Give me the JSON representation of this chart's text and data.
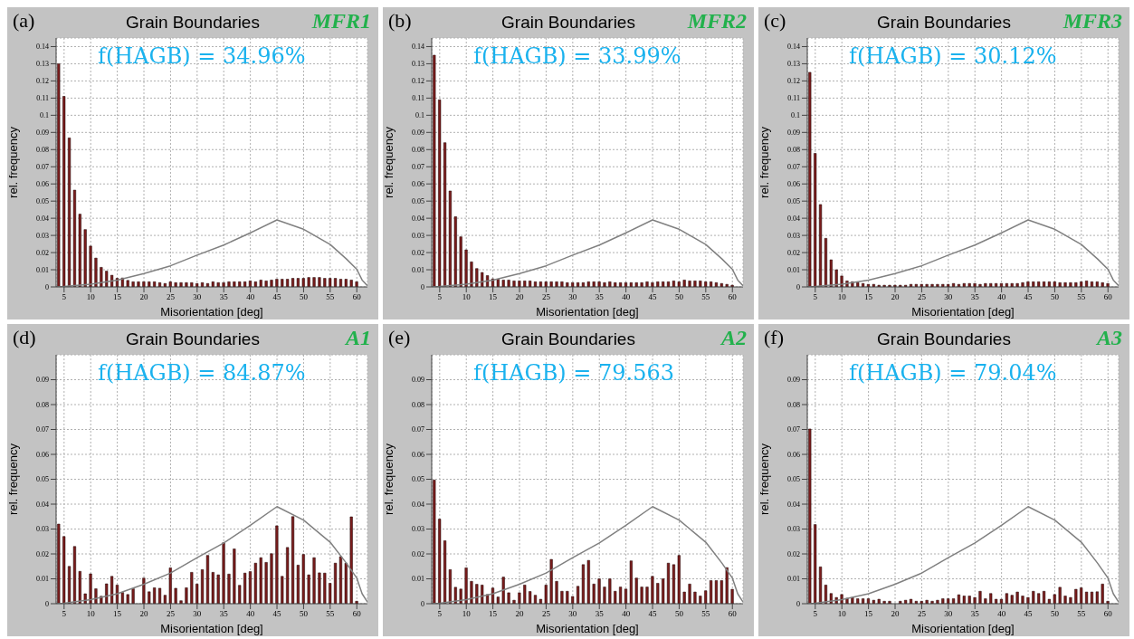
{
  "chart_data": [
    {
      "type": "bar",
      "title": "Grain Boundaries",
      "annotations": [
        "(a)",
        "MFR1",
        "f(HAGB) = 34.96%"
      ],
      "xlabel": "Misorientation [deg]",
      "ylabel": "rel. frequency",
      "xlim": [
        3.5,
        62
      ],
      "xticks": [
        5,
        10,
        15,
        20,
        25,
        30,
        35,
        40,
        45,
        50,
        55,
        60
      ],
      "ylim": [
        0,
        0.145
      ],
      "yticks": [
        0,
        0.01,
        0.02,
        0.03,
        0.04,
        0.05,
        0.06,
        0.07,
        0.08,
        0.09,
        0.1,
        0.11,
        0.12,
        0.13,
        0.14
      ],
      "grid": true,
      "series": [
        {
          "color": "#7a1c1c",
          "x": [
            4,
            5,
            6,
            7,
            8,
            9,
            10,
            11,
            12,
            13,
            14,
            15,
            16,
            17,
            18,
            19,
            20,
            21,
            22,
            23,
            24,
            25,
            26,
            27,
            28,
            29,
            30,
            31,
            32,
            33,
            34,
            35,
            36,
            37,
            38,
            39,
            40,
            41,
            42,
            43,
            44,
            45,
            46,
            47,
            48,
            49,
            50,
            51,
            52,
            53,
            54,
            55,
            56,
            57,
            58,
            59,
            60
          ],
          "values": [
            0.13,
            0.111,
            0.0868,
            0.0564,
            0.0424,
            0.0334,
            0.0238,
            0.0168,
            0.0114,
            0.0092,
            0.0068,
            0.005,
            0.0052,
            0.0038,
            0.003,
            0.003,
            0.003,
            0.003,
            0.003,
            0.0025,
            0.002,
            0.003,
            0.0025,
            0.0025,
            0.0025,
            0.0025,
            0.002,
            0.0025,
            0.002,
            0.003,
            0.0025,
            0.0025,
            0.003,
            0.003,
            0.003,
            0.003,
            0.0035,
            0.003,
            0.004,
            0.0035,
            0.004,
            0.0045,
            0.0045,
            0.0045,
            0.005,
            0.005,
            0.005,
            0.0055,
            0.0055,
            0.0055,
            0.005,
            0.005,
            0.005,
            0.0045,
            0.0045,
            0.004,
            0.003
          ]
        },
        {
          "type": "line",
          "color": "#808080",
          "x": [
            3.5,
            5,
            10,
            15,
            20,
            25,
            30,
            35,
            40,
            45,
            50,
            55,
            58,
            60,
            61,
            62
          ],
          "values": [
            0,
            0.0002,
            0.0016,
            0.004,
            0.0078,
            0.0123,
            0.0185,
            0.0244,
            0.0315,
            0.039,
            0.0336,
            0.0247,
            0.0164,
            0.0103,
            0.004,
            0.0007
          ]
        }
      ]
    },
    {
      "type": "bar",
      "title": "Grain Boundaries",
      "annotations": [
        "(b)",
        "MFR2",
        "f(HAGB) = 33.99%"
      ],
      "xlabel": "Misorientation [deg]",
      "ylabel": "rel. frequency",
      "xlim": [
        3.5,
        62
      ],
      "xticks": [
        5,
        10,
        15,
        20,
        25,
        30,
        35,
        40,
        45,
        50,
        55,
        60
      ],
      "ylim": [
        0,
        0.145
      ],
      "yticks": [
        0,
        0.01,
        0.02,
        0.03,
        0.04,
        0.05,
        0.06,
        0.07,
        0.08,
        0.09,
        0.1,
        0.11,
        0.12,
        0.13,
        0.14
      ],
      "grid": true,
      "series": [
        {
          "color": "#7a1c1c",
          "x": [
            4,
            5,
            6,
            7,
            8,
            9,
            10,
            11,
            12,
            13,
            14,
            15,
            16,
            17,
            18,
            19,
            20,
            21,
            22,
            23,
            24,
            25,
            26,
            27,
            28,
            29,
            30,
            31,
            32,
            33,
            34,
            35,
            36,
            37,
            38,
            39,
            40,
            41,
            42,
            43,
            44,
            45,
            46,
            47,
            48,
            49,
            50,
            51,
            52,
            53,
            54,
            55,
            56,
            57,
            58,
            59,
            60
          ],
          "values": [
            0.135,
            0.109,
            0.084,
            0.0559,
            0.0409,
            0.0292,
            0.0216,
            0.0146,
            0.0107,
            0.0084,
            0.0066,
            0.0047,
            0.0045,
            0.004,
            0.004,
            0.0035,
            0.0035,
            0.0035,
            0.0035,
            0.003,
            0.003,
            0.003,
            0.003,
            0.003,
            0.003,
            0.0025,
            0.0025,
            0.0025,
            0.0025,
            0.003,
            0.003,
            0.003,
            0.0025,
            0.003,
            0.0025,
            0.0025,
            0.0025,
            0.0025,
            0.0025,
            0.0025,
            0.003,
            0.0025,
            0.003,
            0.003,
            0.003,
            0.0035,
            0.003,
            0.004,
            0.0035,
            0.0035,
            0.0035,
            0.003,
            0.003,
            0.0025,
            0.002,
            0.0015,
            0.001
          ]
        },
        {
          "type": "line",
          "color": "#808080",
          "x": [
            3.5,
            5,
            10,
            15,
            20,
            25,
            30,
            35,
            40,
            45,
            50,
            55,
            58,
            60,
            61,
            62
          ],
          "values": [
            0,
            0.0002,
            0.0016,
            0.004,
            0.0078,
            0.0123,
            0.0185,
            0.0244,
            0.0315,
            0.039,
            0.0336,
            0.0247,
            0.0164,
            0.0103,
            0.004,
            0.0007
          ]
        }
      ]
    },
    {
      "type": "bar",
      "title": "Grain Boundaries",
      "annotations": [
        "(c)",
        "MFR3",
        "f(HAGB) = 30.12%"
      ],
      "xlabel": "Misorientation [deg]",
      "ylabel": "rel. frequency",
      "xlim": [
        3.5,
        62
      ],
      "xticks": [
        5,
        10,
        15,
        20,
        25,
        30,
        35,
        40,
        45,
        50,
        55,
        60
      ],
      "ylim": [
        0,
        0.145
      ],
      "yticks": [
        0,
        0.01,
        0.02,
        0.03,
        0.04,
        0.05,
        0.06,
        0.07,
        0.08,
        0.09,
        0.1,
        0.11,
        0.12,
        0.13,
        0.14
      ],
      "grid": true,
      "series": [
        {
          "color": "#7a1c1c",
          "x": [
            4,
            5,
            6,
            7,
            8,
            9,
            10,
            11,
            12,
            13,
            14,
            15,
            16,
            17,
            18,
            19,
            20,
            21,
            22,
            23,
            24,
            25,
            26,
            27,
            28,
            29,
            30,
            31,
            32,
            33,
            34,
            35,
            36,
            37,
            38,
            39,
            40,
            41,
            42,
            43,
            44,
            45,
            46,
            47,
            48,
            49,
            50,
            51,
            52,
            53,
            54,
            55,
            56,
            57,
            58,
            59,
            60
          ],
          "values": [
            0.125,
            0.0778,
            0.048,
            0.0283,
            0.0158,
            0.01,
            0.0064,
            0.0035,
            0.003,
            0.0025,
            0.002,
            0.0015,
            0.0015,
            0.001,
            0.001,
            0.001,
            0.001,
            0.001,
            0.001,
            0.0015,
            0.0015,
            0.0015,
            0.0015,
            0.0015,
            0.0015,
            0.0015,
            0.0015,
            0.002,
            0.0015,
            0.002,
            0.002,
            0.002,
            0.0015,
            0.002,
            0.002,
            0.002,
            0.002,
            0.002,
            0.002,
            0.002,
            0.0025,
            0.003,
            0.003,
            0.003,
            0.003,
            0.003,
            0.003,
            0.0025,
            0.0025,
            0.0025,
            0.0025,
            0.003,
            0.0035,
            0.003,
            0.003,
            0.0025,
            0.002
          ]
        },
        {
          "type": "line",
          "color": "#808080",
          "x": [
            3.5,
            5,
            10,
            15,
            20,
            25,
            30,
            35,
            40,
            45,
            50,
            55,
            58,
            60,
            61,
            62
          ],
          "values": [
            0,
            0.0002,
            0.0016,
            0.004,
            0.0078,
            0.0123,
            0.0185,
            0.0244,
            0.0315,
            0.039,
            0.0336,
            0.0247,
            0.0164,
            0.0103,
            0.004,
            0.0007
          ]
        }
      ]
    },
    {
      "type": "bar",
      "title": "Grain Boundaries",
      "annotations": [
        "(d)",
        "A1",
        "f(HAGB) = 84.87%"
      ],
      "xlabel": "Misorientation [deg]",
      "ylabel": "rel. frequency",
      "xlim": [
        3.5,
        62
      ],
      "xticks": [
        5,
        10,
        15,
        20,
        25,
        30,
        35,
        40,
        45,
        50,
        55,
        60
      ],
      "ylim": [
        0,
        0.1
      ],
      "yticks": [
        0,
        0.01,
        0.02,
        0.03,
        0.04,
        0.05,
        0.06,
        0.07,
        0.08,
        0.09
      ],
      "grid": true,
      "series": [
        {
          "color": "#7a1c1c",
          "x": [
            4,
            5,
            6,
            7,
            8,
            9,
            10,
            11,
            12,
            13,
            14,
            15,
            16,
            17,
            18,
            19,
            20,
            21,
            22,
            23,
            24,
            25,
            26,
            27,
            28,
            29,
            30,
            31,
            32,
            33,
            34,
            35,
            36,
            37,
            38,
            39,
            40,
            41,
            42,
            43,
            44,
            45,
            46,
            47,
            48,
            49,
            50,
            51,
            52,
            53,
            54,
            55,
            56,
            57,
            58,
            59,
            60
          ],
          "values": [
            0.032,
            0.027,
            0.015,
            0.023,
            0.013,
            0.004,
            0.012,
            0.006,
            0.003,
            0.008,
            0.011,
            0.0075,
            0.0045,
            0.0037,
            0.006,
            null,
            0.0103,
            0.0048,
            0.0064,
            0.0062,
            0.0034,
            0.0144,
            0.0062,
            0.0012,
            0.0064,
            0.0126,
            0.0079,
            0.0137,
            0.0194,
            0.0126,
            0.0116,
            0.0245,
            0.0119,
            0.022,
            0.0074,
            0.0123,
            0.0129,
            0.0163,
            0.0185,
            0.0166,
            0.0201,
            0.0313,
            0.011,
            0.0226,
            0.035,
            0.0155,
            0.0198,
            0.0116,
            0.0185,
            0.0124,
            0.0123,
            0.0082,
            0.0163,
            0.0189,
            0.0163,
            0.0349,
            0.001
          ]
        },
        {
          "type": "line",
          "color": "#808080",
          "x": [
            3.5,
            5,
            10,
            15,
            20,
            25,
            30,
            35,
            40,
            45,
            50,
            55,
            58,
            60,
            61,
            62
          ],
          "values": [
            0,
            0.0002,
            0.0016,
            0.004,
            0.0078,
            0.0123,
            0.0185,
            0.0244,
            0.0315,
            0.039,
            0.0336,
            0.0247,
            0.0164,
            0.0103,
            0.004,
            0.0007
          ]
        }
      ]
    },
    {
      "type": "bar",
      "title": "Grain Boundaries",
      "annotations": [
        "(e)",
        "A2",
        "f(HAGB) = 79.563"
      ],
      "xlabel": "Misorientation [deg]",
      "ylabel": "rel. frequency",
      "xlim": [
        3.5,
        62
      ],
      "xticks": [
        5,
        10,
        15,
        20,
        25,
        30,
        35,
        40,
        45,
        50,
        55,
        60
      ],
      "ylim": [
        0,
        0.1
      ],
      "yticks": [
        0,
        0.01,
        0.02,
        0.03,
        0.04,
        0.05,
        0.06,
        0.07,
        0.08,
        0.09
      ],
      "grid": true,
      "series": [
        {
          "color": "#7a1c1c",
          "x": [
            4,
            5,
            6,
            7,
            8,
            9,
            10,
            11,
            12,
            13,
            14,
            15,
            16,
            17,
            18,
            19,
            20,
            21,
            22,
            23,
            24,
            25,
            26,
            27,
            28,
            29,
            30,
            31,
            32,
            33,
            34,
            35,
            36,
            37,
            38,
            39,
            40,
            41,
            42,
            43,
            44,
            45,
            46,
            47,
            48,
            49,
            50,
            51,
            52,
            53,
            54,
            55,
            56,
            57,
            58,
            59,
            60
          ],
          "values": [
            0.0497,
            0.034,
            0.0253,
            0.0137,
            0.0066,
            0.0059,
            0.0144,
            0.009,
            0.0078,
            0.0075,
            0.0037,
            0.0063,
            0.0027,
            0.0107,
            0.0044,
            0.0014,
            0.0044,
            0.0075,
            0.0049,
            0.0034,
            0.0018,
            0.0075,
            0.0178,
            0.009,
            0.005,
            0.005,
            0.0029,
            0.007,
            0.0157,
            0.0174,
            0.0079,
            0.01,
            0.0067,
            0.01,
            0.005,
            0.0067,
            0.0059,
            0.0172,
            0.0103,
            0.0067,
            0.0067,
            0.011,
            0.0082,
            0.01,
            0.0163,
            0.0157,
            0.0194,
            0.0047,
            0.0079,
            0.0047,
            0.0031,
            0.0052,
            0.0093,
            0.0093,
            0.0093,
            0.0145,
            0.0058
          ]
        },
        {
          "type": "line",
          "color": "#808080",
          "x": [
            3.5,
            5,
            10,
            15,
            20,
            25,
            30,
            35,
            40,
            45,
            50,
            55,
            58,
            60,
            61,
            62
          ],
          "values": [
            0,
            0.0002,
            0.0016,
            0.004,
            0.0078,
            0.0123,
            0.0185,
            0.0244,
            0.0315,
            0.039,
            0.0336,
            0.0247,
            0.0164,
            0.0103,
            0.004,
            0.0007
          ]
        }
      ]
    },
    {
      "type": "bar",
      "title": "Grain Boundaries",
      "annotations": [
        "(f)",
        "A3",
        "f(HAGB) = 79.04%"
      ],
      "xlabel": "Misorientation [deg]",
      "ylabel": "rel. frequency",
      "xlim": [
        3.5,
        62
      ],
      "xticks": [
        5,
        10,
        15,
        20,
        25,
        30,
        35,
        40,
        45,
        50,
        55,
        60
      ],
      "ylim": [
        0,
        0.1
      ],
      "yticks": [
        0,
        0.01,
        0.02,
        0.03,
        0.04,
        0.05,
        0.06,
        0.07,
        0.08,
        0.09
      ],
      "grid": true,
      "series": [
        {
          "color": "#7a1c1c",
          "x": [
            4,
            5,
            6,
            7,
            8,
            9,
            10,
            11,
            12,
            13,
            14,
            15,
            16,
            17,
            18,
            19,
            20,
            21,
            22,
            23,
            24,
            25,
            26,
            27,
            28,
            29,
            30,
            31,
            32,
            33,
            34,
            35,
            36,
            37,
            38,
            39,
            40,
            41,
            42,
            43,
            44,
            45,
            46,
            47,
            48,
            49,
            50,
            51,
            52,
            53,
            54,
            55,
            56,
            57,
            58,
            59,
            60
          ],
          "values": [
            0.0702,
            0.0318,
            0.0148,
            0.0075,
            0.0041,
            0.0025,
            0.0037,
            0.0022,
            0.0025,
            0.002,
            0.002,
            0.002,
            0.0014,
            0.0018,
            0.001,
            0.001,
            0,
            0.001,
            0.0014,
            0.0018,
            0.001,
            0.001,
            0.0014,
            0.001,
            0.0014,
            0.002,
            0.002,
            0.002,
            0.0036,
            0.0031,
            0.0031,
            0.0025,
            0.005,
            0.002,
            0.0041,
            0.0018,
            0.0018,
            0.0041,
            0.0034,
            0.0047,
            0.0031,
            0.0025,
            0.005,
            0.0041,
            0.005,
            0.0018,
            0.0037,
            0.0066,
            0.0031,
            0.0025,
            0.0058,
            0.0064,
            0.0047,
            0.0047,
            0.0048,
            0.0079,
            0.001
          ]
        },
        {
          "type": "line",
          "color": "#808080",
          "x": [
            3.5,
            5,
            10,
            15,
            20,
            25,
            30,
            35,
            40,
            45,
            50,
            55,
            58,
            60,
            61,
            62
          ],
          "values": [
            0,
            0.0002,
            0.0016,
            0.004,
            0.0078,
            0.0123,
            0.0185,
            0.0244,
            0.0315,
            0.039,
            0.0336,
            0.0247,
            0.0164,
            0.0103,
            0.004,
            0.0007
          ]
        }
      ]
    }
  ]
}
